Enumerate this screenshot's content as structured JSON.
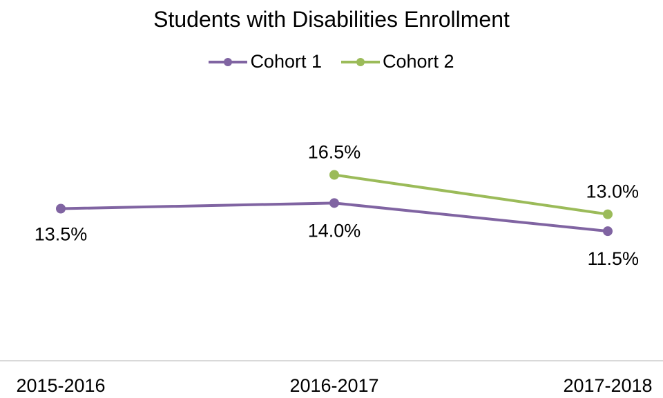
{
  "chart_data": {
    "type": "line",
    "title": "Students with Disabilities Enrollment",
    "xlabel": "",
    "ylabel": "",
    "categories": [
      "2015-2016",
      "2016-2017",
      "2017-2018"
    ],
    "series": [
      {
        "name": "Cohort 1",
        "color": "#8064A2",
        "values": [
          13.5,
          14.0,
          11.5
        ],
        "labels": [
          "13.5%",
          "14.0%",
          "11.5%"
        ]
      },
      {
        "name": "Cohort 2",
        "color": "#9BBB59",
        "values": [
          null,
          16.5,
          13.0
        ],
        "labels": [
          "",
          "16.5%",
          "13.0%"
        ]
      }
    ],
    "ylim": [
      0,
      30
    ],
    "grid": false,
    "legend": "top"
  }
}
